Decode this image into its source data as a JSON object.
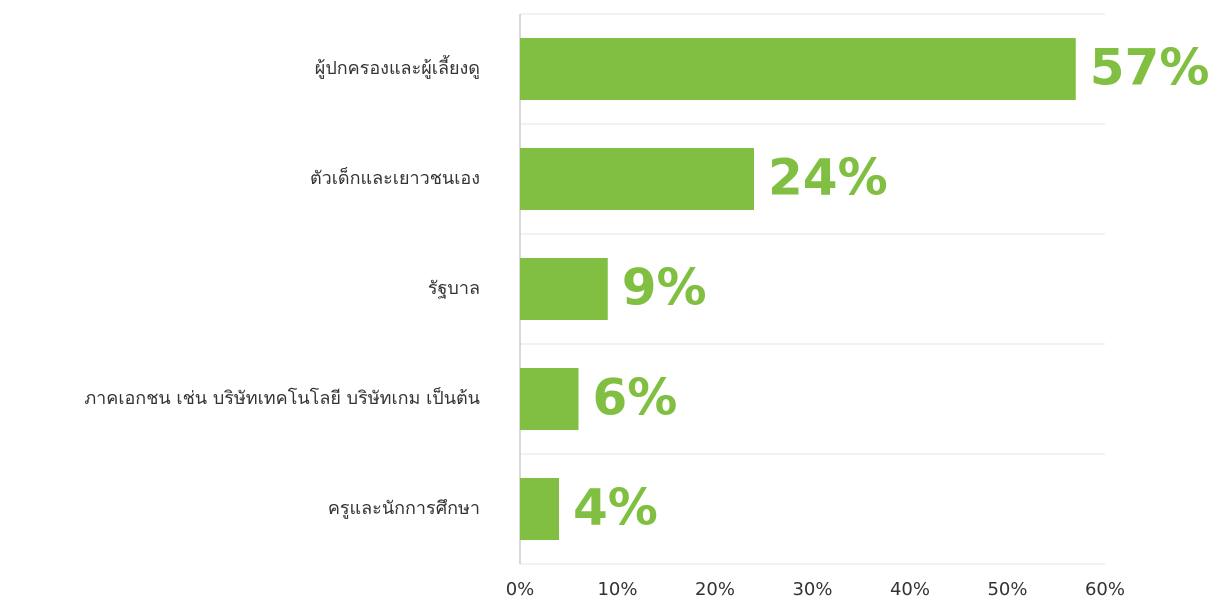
{
  "chart_data": {
    "type": "barh",
    "categories": [
      "ผู้ปกครองและผู้เลี้ยงดู",
      "ตัวเด็กและเยาวชนเอง",
      "รัฐบาล",
      "ภาคเอกชน เช่น บริษัทเทคโนโลยี บริษัทเกม เป็นต้น",
      "ครูและนักการศึกษา"
    ],
    "values": [
      57,
      24,
      9,
      6,
      4
    ],
    "value_labels": [
      "57%",
      "24%",
      "9%",
      "6%",
      "4%"
    ],
    "color": "#80bf41",
    "xlim": [
      0,
      60
    ],
    "xticks": [
      {
        "value": 0,
        "label": "0%"
      },
      {
        "value": 10,
        "label": "10%"
      },
      {
        "value": 20,
        "label": "20%"
      },
      {
        "value": 30,
        "label": "30%"
      },
      {
        "value": 40,
        "label": "40%"
      },
      {
        "value": 50,
        "label": "50%"
      },
      {
        "value": 60,
        "label": "60%"
      }
    ]
  }
}
